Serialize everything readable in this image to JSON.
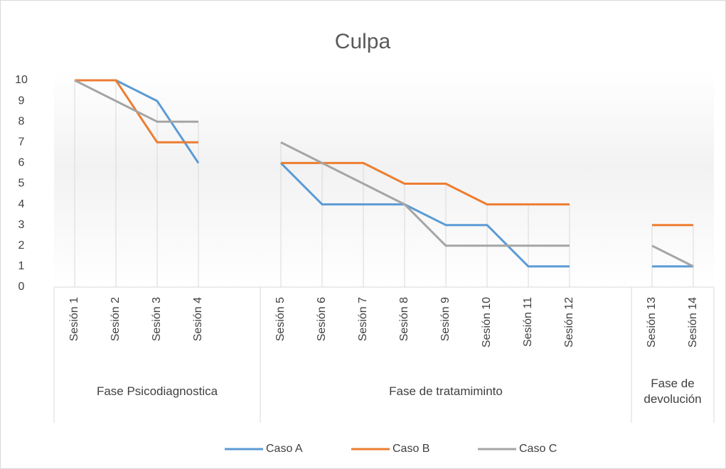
{
  "chart_data": {
    "type": "line",
    "title": "Culpa",
    "categories": [
      "Sesión 1",
      "Sesión 2",
      "Sesión 3",
      "Sesión 4",
      null,
      "Sesión 5",
      "Sesión 6",
      "Sesión 7",
      "Sesión 8",
      "Sesión 9",
      "Sesión 10",
      "Sesión 11",
      "Sesión 12",
      null,
      "Sesión 13",
      "Sesión 14"
    ],
    "groups": [
      {
        "label": "Fase Psicodiagnostica",
        "start": 0,
        "end": 4
      },
      {
        "label": "Fase de tratamiminto",
        "start": 5,
        "end": 13
      },
      {
        "label": "Fase de devolución",
        "start": 14,
        "end": 15
      }
    ],
    "series": [
      {
        "name": "Caso A",
        "color": "#5b9bd5",
        "values": [
          10,
          10,
          9,
          6,
          null,
          6,
          4,
          4,
          4,
          3,
          3,
          1,
          1,
          null,
          1,
          1
        ]
      },
      {
        "name": "Caso B",
        "color": "#ed7d31",
        "values": [
          10,
          10,
          7,
          7,
          null,
          6,
          6,
          6,
          5,
          5,
          4,
          4,
          4,
          null,
          3,
          3
        ]
      },
      {
        "name": "Caso C",
        "color": "#a5a5a5",
        "values": [
          10,
          9,
          8,
          8,
          null,
          7,
          6,
          5,
          4,
          2,
          2,
          2,
          2,
          null,
          2,
          1
        ]
      }
    ],
    "ylim": [
      0,
      10
    ],
    "yticks": [
      0,
      1,
      2,
      3,
      4,
      5,
      6,
      7,
      8,
      9,
      10
    ],
    "drop_lines": true,
    "legend": "bottom"
  }
}
